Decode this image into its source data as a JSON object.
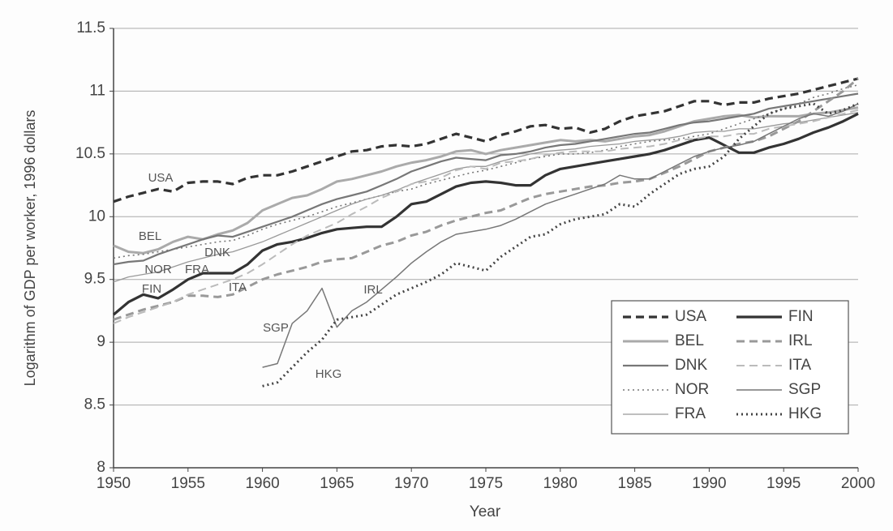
{
  "chart_data": {
    "type": "line",
    "ylabel": "Logarithm of GDP per worker, 1996 dollars",
    "xlabel": "Year",
    "x": [
      1950,
      1951,
      1952,
      1953,
      1954,
      1955,
      1956,
      1957,
      1958,
      1959,
      1960,
      1961,
      1962,
      1963,
      1964,
      1965,
      1966,
      1967,
      1968,
      1969,
      1970,
      1971,
      1972,
      1973,
      1974,
      1975,
      1976,
      1977,
      1978,
      1979,
      1980,
      1981,
      1982,
      1983,
      1984,
      1985,
      1986,
      1987,
      1988,
      1989,
      1990,
      1991,
      1992,
      1993,
      1994,
      1995,
      1996,
      1997,
      1998,
      1999,
      2000
    ],
    "series": [
      {
        "name": "USA",
        "color": "#333333",
        "style": "dashed",
        "width": 3.2,
        "values": [
          10.12,
          10.16,
          10.19,
          10.22,
          10.2,
          10.27,
          10.28,
          10.28,
          10.26,
          10.31,
          10.33,
          10.33,
          10.36,
          10.4,
          10.44,
          10.48,
          10.52,
          10.53,
          10.56,
          10.57,
          10.56,
          10.58,
          10.62,
          10.66,
          10.63,
          10.6,
          10.65,
          10.68,
          10.72,
          10.73,
          10.7,
          10.71,
          10.67,
          10.7,
          10.76,
          10.8,
          10.82,
          10.84,
          10.88,
          10.92,
          10.92,
          10.89,
          10.91,
          10.91,
          10.94,
          10.96,
          10.98,
          11.01,
          11.04,
          11.07,
          11.1
        ]
      },
      {
        "name": "BEL",
        "color": "#aaaaaa",
        "style": "solid",
        "width": 3,
        "values": [
          9.77,
          9.72,
          9.71,
          9.74,
          9.8,
          9.84,
          9.82,
          9.86,
          9.89,
          9.95,
          10.05,
          10.1,
          10.15,
          10.17,
          10.22,
          10.28,
          10.3,
          10.33,
          10.36,
          10.4,
          10.43,
          10.45,
          10.48,
          10.52,
          10.53,
          10.5,
          10.53,
          10.55,
          10.57,
          10.59,
          10.61,
          10.6,
          10.61,
          10.6,
          10.62,
          10.64,
          10.65,
          10.68,
          10.72,
          10.76,
          10.78,
          10.8,
          10.81,
          10.79,
          10.8,
          10.8,
          10.8,
          10.82,
          10.83,
          10.85,
          10.87
        ]
      },
      {
        "name": "DNK",
        "color": "#777777",
        "style": "solid",
        "width": 2.2,
        "values": [
          9.62,
          9.64,
          9.65,
          9.7,
          9.74,
          9.78,
          9.82,
          9.85,
          9.84,
          9.88,
          9.92,
          9.96,
          10.0,
          10.05,
          10.1,
          10.14,
          10.17,
          10.2,
          10.25,
          10.3,
          10.36,
          10.4,
          10.44,
          10.47,
          10.46,
          10.45,
          10.49,
          10.5,
          10.52,
          10.55,
          10.57,
          10.58,
          10.6,
          10.62,
          10.64,
          10.66,
          10.67,
          10.7,
          10.73,
          10.75,
          10.76,
          10.78,
          10.8,
          10.82,
          10.86,
          10.88,
          10.9,
          10.92,
          10.94,
          10.96,
          10.98
        ]
      },
      {
        "name": "NOR",
        "color": "#777777",
        "style": "dotted",
        "width": 1.6,
        "values": [
          9.67,
          9.69,
          9.7,
          9.72,
          9.74,
          9.76,
          9.78,
          9.8,
          9.81,
          9.85,
          9.9,
          9.94,
          9.97,
          10.0,
          10.04,
          10.08,
          10.11,
          10.14,
          10.17,
          10.2,
          10.22,
          10.26,
          10.29,
          10.32,
          10.35,
          10.37,
          10.4,
          10.43,
          10.46,
          10.48,
          10.5,
          10.5,
          10.51,
          10.53,
          10.56,
          10.58,
          10.6,
          10.61,
          10.62,
          10.64,
          10.66,
          10.7,
          10.74,
          10.78,
          10.82,
          10.86,
          10.9,
          10.95,
          10.98,
          11.02,
          11.05
        ]
      },
      {
        "name": "FRA",
        "color": "#999999",
        "style": "solid",
        "width": 1.3,
        "values": [
          9.48,
          9.52,
          9.54,
          9.56,
          9.6,
          9.64,
          9.67,
          9.7,
          9.72,
          9.76,
          9.8,
          9.85,
          9.9,
          9.95,
          10.0,
          10.05,
          10.1,
          10.14,
          10.17,
          10.21,
          10.26,
          10.3,
          10.34,
          10.38,
          10.4,
          10.4,
          10.44,
          10.47,
          10.5,
          10.52,
          10.53,
          10.54,
          10.56,
          10.57,
          10.58,
          10.6,
          10.61,
          10.62,
          10.64,
          10.67,
          10.68,
          10.68,
          10.7,
          10.7,
          10.72,
          10.74,
          10.75,
          10.77,
          10.79,
          10.81,
          10.83
        ]
      },
      {
        "name": "FIN",
        "color": "#333333",
        "style": "solid",
        "width": 3.2,
        "values": [
          9.22,
          9.32,
          9.38,
          9.35,
          9.42,
          9.5,
          9.55,
          9.55,
          9.55,
          9.62,
          9.73,
          9.78,
          9.8,
          9.83,
          9.87,
          9.9,
          9.91,
          9.92,
          9.92,
          10.0,
          10.1,
          10.12,
          10.18,
          10.24,
          10.27,
          10.28,
          10.27,
          10.25,
          10.25,
          10.33,
          10.38,
          10.4,
          10.42,
          10.44,
          10.46,
          10.48,
          10.5,
          10.53,
          10.57,
          10.61,
          10.63,
          10.57,
          10.51,
          10.51,
          10.55,
          10.58,
          10.62,
          10.67,
          10.71,
          10.76,
          10.82
        ]
      },
      {
        "name": "IRL",
        "color": "#999999",
        "style": "dashed",
        "width": 3,
        "values": [
          9.18,
          9.22,
          9.26,
          9.29,
          9.32,
          9.37,
          9.37,
          9.36,
          9.38,
          9.44,
          9.5,
          9.54,
          9.57,
          9.6,
          9.64,
          9.66,
          9.67,
          9.72,
          9.77,
          9.8,
          9.85,
          9.88,
          9.93,
          9.97,
          10.0,
          10.03,
          10.05,
          10.1,
          10.15,
          10.18,
          10.2,
          10.22,
          10.24,
          10.25,
          10.27,
          10.28,
          10.3,
          10.35,
          10.4,
          10.46,
          10.52,
          10.55,
          10.58,
          10.6,
          10.64,
          10.7,
          10.76,
          10.84,
          10.92,
          11.0,
          11.1
        ]
      },
      {
        "name": "ITA",
        "color": "#bbbbbb",
        "style": "dashed",
        "width": 2,
        "values": [
          9.15,
          9.2,
          9.24,
          9.28,
          9.32,
          9.38,
          9.42,
          9.46,
          9.5,
          9.55,
          9.62,
          9.7,
          9.78,
          9.85,
          9.9,
          9.95,
          10.02,
          10.08,
          10.15,
          10.2,
          10.26,
          10.28,
          10.31,
          10.37,
          10.4,
          10.38,
          10.43,
          10.44,
          10.46,
          10.49,
          10.51,
          10.52,
          10.52,
          10.52,
          10.54,
          10.55,
          10.56,
          10.58,
          10.61,
          10.62,
          10.64,
          10.64,
          10.66,
          10.66,
          10.7,
          10.72,
          10.74,
          10.76,
          10.79,
          10.82,
          10.85
        ]
      },
      {
        "name": "SGP",
        "color": "#777777",
        "style": "solid",
        "width": 1.5,
        "values": [
          null,
          null,
          null,
          null,
          null,
          null,
          null,
          null,
          null,
          null,
          8.8,
          8.83,
          9.15,
          9.25,
          9.43,
          9.12,
          9.25,
          9.32,
          9.42,
          9.52,
          9.63,
          9.72,
          9.8,
          9.86,
          9.88,
          9.9,
          9.93,
          9.98,
          10.04,
          10.1,
          10.14,
          10.18,
          10.22,
          10.26,
          10.33,
          10.3,
          10.3,
          10.36,
          10.42,
          10.48,
          10.52,
          10.55,
          10.57,
          10.6,
          10.66,
          10.72,
          10.78,
          10.82,
          10.8,
          10.84,
          10.9
        ]
      },
      {
        "name": "HKG",
        "color": "#444444",
        "style": "dotted",
        "width": 3,
        "values": [
          null,
          null,
          null,
          null,
          null,
          null,
          null,
          null,
          null,
          null,
          8.65,
          8.68,
          8.8,
          8.92,
          9.02,
          9.18,
          9.2,
          9.22,
          9.3,
          9.38,
          9.43,
          9.48,
          9.54,
          9.63,
          9.6,
          9.57,
          9.68,
          9.76,
          9.84,
          9.86,
          9.94,
          9.98,
          10.0,
          10.02,
          10.1,
          10.08,
          10.18,
          10.26,
          10.34,
          10.38,
          10.4,
          10.48,
          10.62,
          10.72,
          10.82,
          10.86,
          10.88,
          10.9,
          10.82,
          10.85,
          10.9
        ]
      }
    ],
    "annotations": [
      "USA",
      "BEL",
      "DNK",
      "NOR",
      "FRA",
      "FIN",
      "ITA",
      "IRL",
      "SGP",
      "HKG"
    ],
    "xlim": [
      1950,
      2000
    ],
    "xticks": [
      1950,
      1955,
      1960,
      1965,
      1970,
      1975,
      1980,
      1985,
      1990,
      1995,
      2000
    ],
    "ylim": [
      8,
      11.5
    ],
    "yticks": [
      8,
      8.5,
      9,
      9.5,
      10,
      10.5,
      11,
      11.5
    ],
    "grid": true,
    "legend": "lower right"
  }
}
